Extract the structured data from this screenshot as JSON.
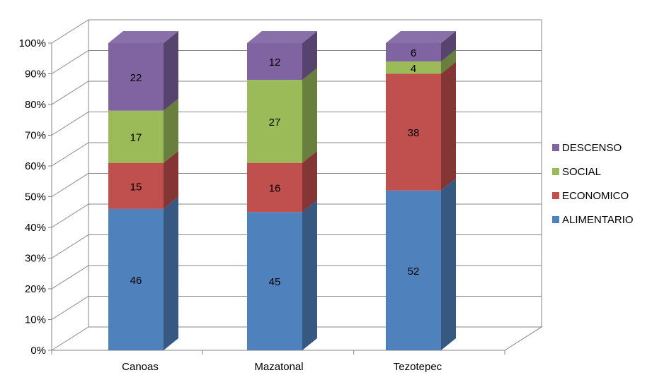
{
  "chart_data": {
    "type": "bar",
    "stacked": "100%",
    "three_d": true,
    "categories": [
      "Canoas",
      "Mazatonal",
      "Tezotepec"
    ],
    "series": [
      {
        "name": "ALIMENTARIO",
        "values": [
          46,
          45,
          52
        ],
        "color": "#4F81BD"
      },
      {
        "name": "ECONOMICO",
        "values": [
          15,
          16,
          38
        ],
        "color": "#C0504D"
      },
      {
        "name": "SOCIAL",
        "values": [
          17,
          27,
          4
        ],
        "color": "#9BBB59"
      },
      {
        "name": "DESCENSO",
        "values": [
          22,
          12,
          6
        ],
        "color": "#8064A2"
      }
    ],
    "y_ticks": [
      "0%",
      "10%",
      "20%",
      "30%",
      "40%",
      "50%",
      "60%",
      "70%",
      "80%",
      "90%",
      "100%"
    ],
    "ylim": [
      0,
      100
    ],
    "grid": true,
    "legend_position": "right",
    "legend_order": [
      "DESCENSO",
      "SOCIAL",
      "ECONOMICO",
      "ALIMENTARIO"
    ]
  }
}
